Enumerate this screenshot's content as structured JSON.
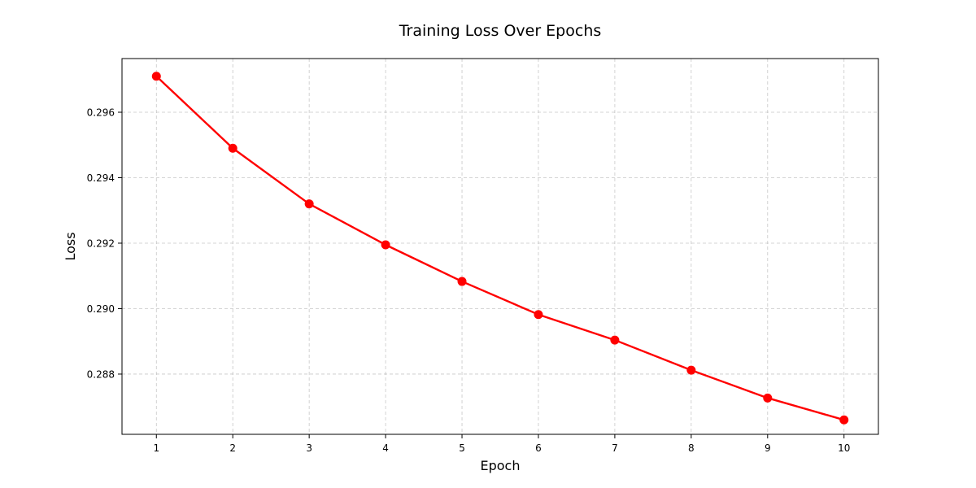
{
  "chart_data": {
    "type": "line",
    "title": "Training Loss Over Epochs",
    "xlabel": "Epoch",
    "ylabel": "Loss",
    "x": [
      1,
      2,
      3,
      4,
      5,
      6,
      7,
      8,
      9,
      10
    ],
    "series": [
      {
        "values": [
          0.2971,
          0.2949,
          0.2932,
          0.29195,
          0.29083,
          0.28982,
          0.28904,
          0.28812,
          0.28727,
          0.2866
        ]
      }
    ],
    "xlim": [
      0.55,
      10.45
    ],
    "ylim": [
      0.28616,
      0.29764
    ],
    "xticks": [
      1,
      2,
      3,
      4,
      5,
      6,
      7,
      8,
      9,
      10
    ],
    "yticks": [
      0.288,
      0.29,
      0.292,
      0.294,
      0.296
    ],
    "ytick_labels": [
      "0.288",
      "0.290",
      "0.292",
      "0.294",
      "0.296"
    ],
    "grid": true,
    "line_color": "#ff0000",
    "marker": "circle"
  }
}
